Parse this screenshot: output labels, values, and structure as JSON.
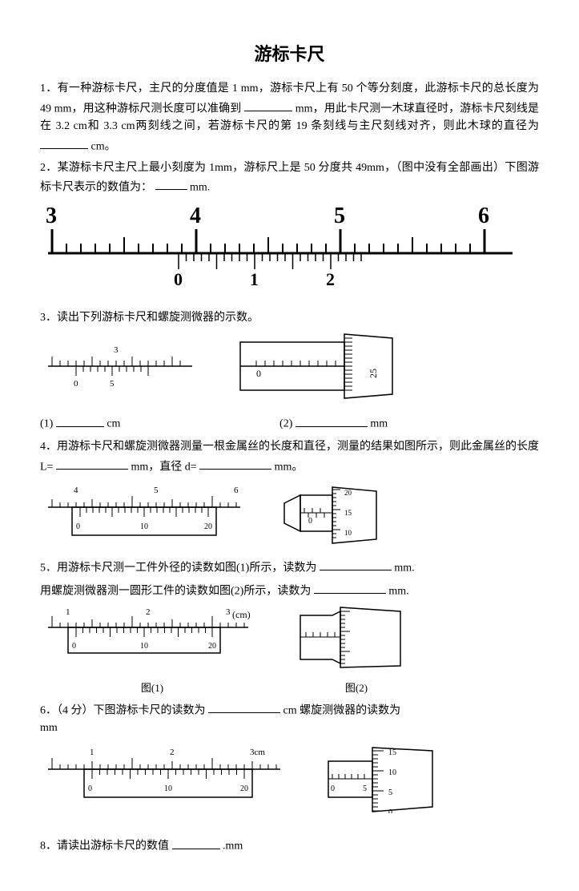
{
  "title": "游标卡尺",
  "q1": {
    "text_a": "1．有一种游标卡尺，主尺的分度值是 1 mm，游标卡尺上有 50 个等分刻度，此游标卡尺的总长度为 49 mm，用这种游标尺测长度可以准确到",
    "text_b": "mm，用此卡尺测一木球直径时，游标卡尺刻线是在 3.2 cm和 3.3 cm两刻线之间，若游标卡尺的第 19 条刻线与主尺刻线对齐，则此木球的直径为",
    "text_c": "cm。"
  },
  "q2": {
    "text_a": "2．某游标卡尺主尺上最小刻度为 1mm，游标尺上是 50 分度共 49mm，（图中没有全部画出）下图游标卡尺表示的数值为：",
    "text_b": "mm."
  },
  "fig2": {
    "main_labels": [
      "3",
      "4",
      "5",
      "6"
    ],
    "vernier_labels": [
      "0",
      "1",
      "2"
    ],
    "main_ticks_major": 30,
    "main_tick_spacing": 18,
    "vernier_start": 9,
    "vernier_count": 24,
    "vernier_spacing": 9
  },
  "q3": {
    "text": "3．读出下列游标卡尺和螺旋测微器的示数。"
  },
  "fig3a": {
    "main_labels": [
      "3"
    ],
    "vernier_labels": [
      "0",
      "5"
    ],
    "main_count": 17,
    "vernier_count": 11
  },
  "fig3b": {
    "thimble_label": "25",
    "sleeve_label": "0"
  },
  "q3ans": {
    "a": "(1)",
    "a_unit": "cm",
    "b": "(2)",
    "b_unit": "mm"
  },
  "q4": {
    "text_a": "4．用游标卡尺和螺旋测微器测量一根金属丝的长度和直径，测量的结果如图所示，则此金属丝的长度 L=",
    "text_b": "mm，直径 d=",
    "text_c": "mm。"
  },
  "fig4a": {
    "main_labels": [
      "4",
      "5",
      "6"
    ],
    "vernier_labels": [
      "0",
      "10",
      "20"
    ]
  },
  "fig4b": {
    "thimble_labels": [
      "20",
      "15",
      "10"
    ],
    "sleeve_labels": [
      "0"
    ]
  },
  "q5": {
    "text_a": "5．用游标卡尺测一工件外径的读数如图(1)所示，读数为",
    "unit_a": "mm.",
    "text_b": "用螺旋测微器测一圆形工件的读数如图(2)所示，读数为",
    "unit_b": "mm."
  },
  "fig5a": {
    "main_labels": [
      "1",
      "2",
      "3"
    ],
    "cm_label": "(cm)",
    "vernier_labels": [
      "0",
      "10",
      "20"
    ],
    "caption": "图(1)"
  },
  "fig5b": {
    "caption": "图(2)"
  },
  "q6": {
    "text_a": "6．（4 分）下图游标卡尺的读数为",
    "unit_a": "cm  螺旋测微器的读数为",
    "unit_b": "mm"
  },
  "fig6a": {
    "main_labels": [
      "1",
      "2",
      "3cm"
    ],
    "vernier_labels": [
      "0",
      "10",
      "20"
    ]
  },
  "fig6b": {
    "thimble_labels": [
      "15",
      "10",
      "5",
      "0"
    ],
    "sleeve_labels": [
      "0",
      "5"
    ]
  },
  "q8": {
    "text_a": "8．请读出游标卡尺的数值",
    "unit": ".mm"
  }
}
